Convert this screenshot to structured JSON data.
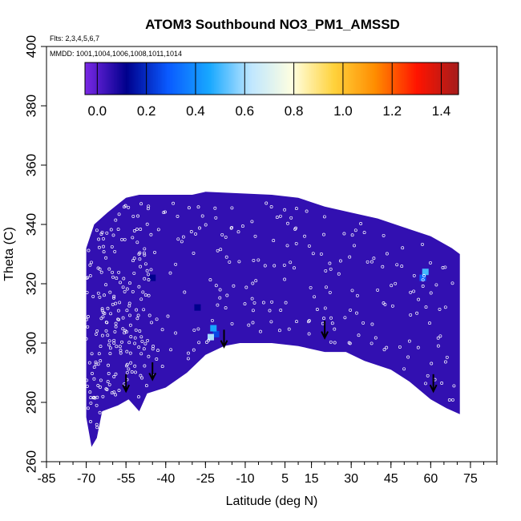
{
  "chart_data": {
    "type": "heatmap",
    "title": "ATOM3 Southbound NO3_PM1_AMSSD",
    "subtitle_flights": "Flts: 2,3,4,5,6,7",
    "subtitle_dates": "MMDD: 1001,1004,1006,1008,1011,1014",
    "xlabel": "Latitude (deg N)",
    "ylabel": "Theta (C)",
    "xlim": [
      -85,
      85
    ],
    "ylim": [
      260,
      400
    ],
    "x_ticks": [
      -85,
      -70,
      -55,
      -40,
      -25,
      -10,
      5,
      15,
      30,
      45,
      60,
      75
    ],
    "x_tick_labels": [
      "-85",
      "-70",
      "-55",
      "-40",
      "-25",
      "-10",
      "5",
      "15",
      "30",
      "45",
      "60",
      "75"
    ],
    "y_ticks": [
      260,
      280,
      300,
      320,
      340,
      360,
      380,
      400
    ],
    "y_tick_labels": [
      "260",
      "280",
      "300",
      "320",
      "340",
      "360",
      "380",
      "400"
    ],
    "colorbar": {
      "min": -0.05,
      "max": 1.47,
      "ticks": [
        0.0,
        0.2,
        0.4,
        0.6,
        0.8,
        1.0,
        1.2,
        1.4
      ],
      "tick_labels": [
        "0.0",
        "0.2",
        "0.4",
        "0.6",
        "0.8",
        "1.0",
        "1.2",
        "1.4"
      ],
      "colors": [
        "#7a28e6",
        "#00008c",
        "#0a5aff",
        "#18a8ff",
        "#bfe6ff",
        "#ffffe0",
        "#ffd23c",
        "#ff8c00",
        "#ff1400",
        "#a51c1c"
      ]
    },
    "background_value": 0.05,
    "data_envelope_top": [
      [
        -70,
        332
      ],
      [
        -67,
        340
      ],
      [
        -62,
        344
      ],
      [
        -55,
        349
      ],
      [
        -50,
        350
      ],
      [
        -30,
        350
      ],
      [
        -25,
        351
      ],
      [
        0,
        350
      ],
      [
        10,
        349
      ],
      [
        20,
        346
      ],
      [
        30,
        344
      ],
      [
        40,
        342
      ],
      [
        50,
        339
      ],
      [
        60,
        336
      ],
      [
        68,
        332
      ],
      [
        71,
        330
      ]
    ],
    "data_envelope_bottom": [
      [
        -70,
        307
      ],
      [
        -70,
        275
      ],
      [
        -68,
        265
      ],
      [
        -66,
        268
      ],
      [
        -64,
        277
      ],
      [
        -58,
        279
      ],
      [
        -54,
        281
      ],
      [
        -50,
        277
      ],
      [
        -47,
        283
      ],
      [
        -40,
        285
      ],
      [
        -32,
        290
      ],
      [
        -25,
        296
      ],
      [
        -18,
        299
      ],
      [
        -12,
        300
      ],
      [
        0,
        300
      ],
      [
        10,
        299
      ],
      [
        20,
        297
      ],
      [
        28,
        297
      ],
      [
        35,
        294
      ],
      [
        45,
        291
      ],
      [
        52,
        287
      ],
      [
        60,
        281
      ],
      [
        66,
        278
      ],
      [
        71,
        276
      ]
    ],
    "hotspots": [
      {
        "lat": -21,
        "theta": 303,
        "value": 0.25
      },
      {
        "lat": -22,
        "theta": 305,
        "value": 0.45
      },
      {
        "lat": -23,
        "theta": 302,
        "value": 0.6
      },
      {
        "lat": 57,
        "theta": 322,
        "value": 0.3
      },
      {
        "lat": 58,
        "theta": 324,
        "value": 0.5
      },
      {
        "lat": -28,
        "theta": 312,
        "value": 0.12
      },
      {
        "lat": -45,
        "theta": 322,
        "value": 0.12
      }
    ],
    "arrows": [
      {
        "lat": -55,
        "theta": 284
      },
      {
        "lat": -45,
        "theta": 288
      },
      {
        "lat": -18,
        "theta": 299
      },
      {
        "lat": 20,
        "theta": 302
      },
      {
        "lat": 61,
        "theta": 284
      }
    ]
  }
}
